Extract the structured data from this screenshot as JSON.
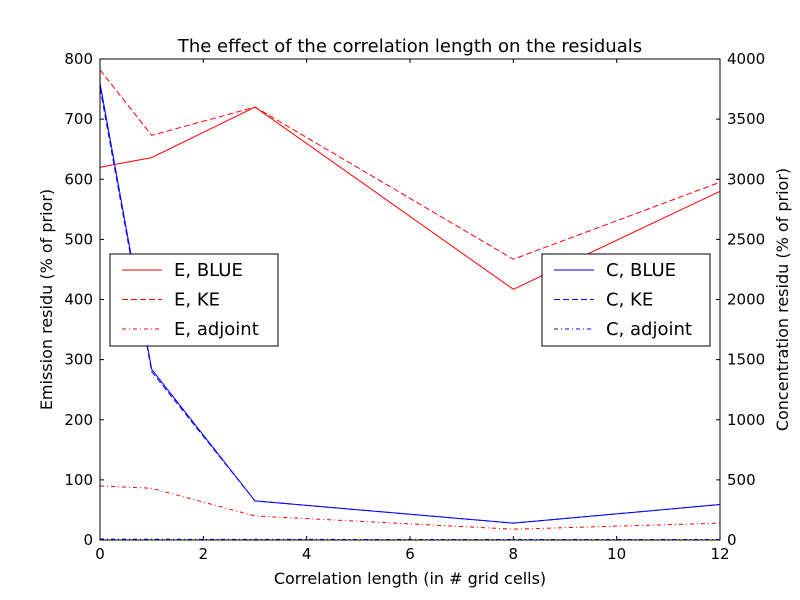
{
  "chart_data": {
    "type": "line",
    "title": "The effect of the correlation length on the residuals",
    "xlabel": "Correlation length (in # grid cells)",
    "ylabel_left": "Emission residu (% of prior)",
    "ylabel_right": "Concentration residu (% of prior)",
    "xlim": [
      0,
      12
    ],
    "ylim_left": [
      0,
      800
    ],
    "ylim_right": [
      0,
      4000
    ],
    "xticks": [
      0,
      2,
      4,
      6,
      8,
      10,
      12
    ],
    "yticks_left": [
      0,
      100,
      200,
      300,
      400,
      500,
      600,
      700,
      800
    ],
    "yticks_right": [
      0,
      500,
      1000,
      1500,
      2000,
      2500,
      3000,
      3500,
      4000
    ],
    "x": [
      0,
      1,
      3,
      8,
      12
    ],
    "grid": false,
    "series": [
      {
        "name": "E, BLUE",
        "axis": "left",
        "color": "#ff0000",
        "dash": "solid",
        "values": [
          620,
          636,
          720,
          417,
          580
        ]
      },
      {
        "name": "E, KE",
        "axis": "left",
        "color": "#ff0000",
        "dash": "dashed",
        "values": [
          782,
          673,
          720,
          467,
          595
        ]
      },
      {
        "name": "E, adjoint",
        "axis": "left",
        "color": "#ff0000",
        "dash": "dashdot",
        "values": [
          90,
          86,
          40,
          18,
          28
        ]
      },
      {
        "name": "C, BLUE",
        "axis": "right",
        "color": "#0000ff",
        "dash": "solid",
        "values": [
          3800,
          1420,
          325,
          140,
          295
        ]
      },
      {
        "name": "C, KE",
        "axis": "right",
        "color": "#0000ff",
        "dash": "dashed",
        "values": [
          3760,
          1400,
          325,
          140,
          295
        ]
      },
      {
        "name": "C, adjoint",
        "axis": "right",
        "color": "#0000ff",
        "dash": "dashdot",
        "values": [
          8,
          6,
          5,
          4,
          4
        ]
      }
    ],
    "legends": [
      {
        "placement": "center-left",
        "entries": [
          "E, BLUE",
          "E, KE",
          "E, adjoint"
        ]
      },
      {
        "placement": "center-right",
        "entries": [
          "C, BLUE",
          "C, KE",
          "C, adjoint"
        ]
      }
    ]
  }
}
